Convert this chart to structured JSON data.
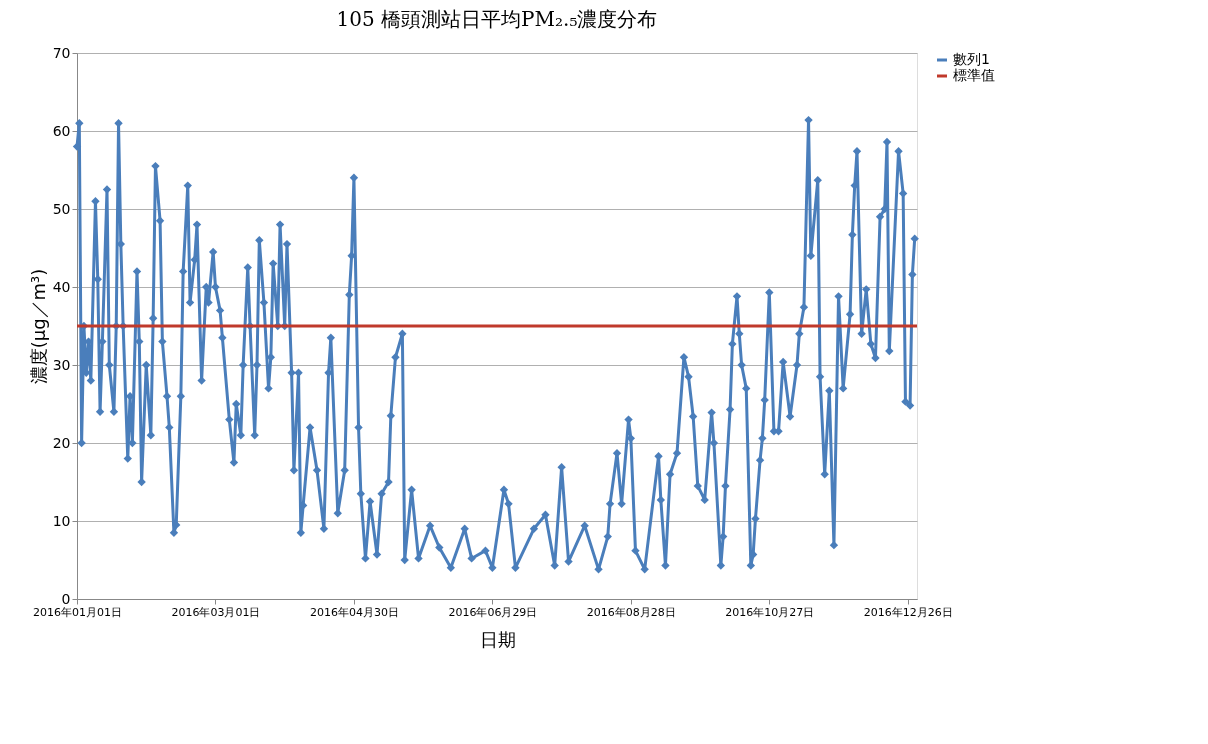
{
  "chart_data": {
    "type": "line",
    "title": "105 橋頭測站日平均PM₂.₅濃度分布",
    "xlabel": "日期",
    "ylabel": "濃度(μg／m³)",
    "x": [
      "2016-01-01",
      "2016-01-02",
      "2016-01-03",
      "2016-01-04",
      "2016-01-05",
      "2016-01-06",
      "2016-01-07",
      "2016-01-09",
      "2016-01-10",
      "2016-01-11",
      "2016-01-12",
      "2016-01-14",
      "2016-01-15",
      "2016-01-17",
      "2016-01-18",
      "2016-01-19",
      "2016-01-20",
      "2016-01-21",
      "2016-01-23",
      "2016-01-24",
      "2016-01-25",
      "2016-01-27",
      "2016-01-28",
      "2016-01-29",
      "2016-01-31",
      "2016-02-02",
      "2016-02-03",
      "2016-02-04",
      "2016-02-06",
      "2016-02-07",
      "2016-02-09",
      "2016-02-10",
      "2016-02-12",
      "2016-02-13",
      "2016-02-15",
      "2016-02-16",
      "2016-02-18",
      "2016-02-19",
      "2016-02-21",
      "2016-02-22",
      "2016-02-24",
      "2016-02-26",
      "2016-02-27",
      "2016-02-29",
      "2016-03-01",
      "2016-03-03",
      "2016-03-04",
      "2016-03-07",
      "2016-03-09",
      "2016-03-10",
      "2016-03-12",
      "2016-03-13",
      "2016-03-15",
      "2016-03-16",
      "2016-03-18",
      "2016-03-19",
      "2016-03-20",
      "2016-03-22",
      "2016-03-24",
      "2016-03-25",
      "2016-03-26",
      "2016-03-28",
      "2016-03-29",
      "2016-03-31",
      "2016-04-01",
      "2016-04-03",
      "2016-04-04",
      "2016-04-06",
      "2016-04-07",
      "2016-04-08",
      "2016-04-11",
      "2016-04-14",
      "2016-04-17",
      "2016-04-19",
      "2016-04-20",
      "2016-04-23",
      "2016-04-26",
      "2016-04-28",
      "2016-04-29",
      "2016-04-30",
      "2016-05-02",
      "2016-05-03",
      "2016-05-05",
      "2016-05-07",
      "2016-05-10",
      "2016-05-12",
      "2016-05-15",
      "2016-05-16",
      "2016-05-18",
      "2016-05-21",
      "2016-05-22",
      "2016-05-25",
      "2016-05-28",
      "2016-06-02",
      "2016-06-06",
      "2016-06-11",
      "2016-06-17",
      "2016-06-20",
      "2016-06-26",
      "2016-06-29",
      "2016-07-04",
      "2016-07-06",
      "2016-07-09",
      "2016-07-17",
      "2016-07-22",
      "2016-07-26",
      "2016-07-29",
      "2016-08-01",
      "2016-08-08",
      "2016-08-14",
      "2016-08-18",
      "2016-08-19",
      "2016-08-22",
      "2016-08-24",
      "2016-08-27",
      "2016-08-28",
      "2016-08-30",
      "2016-09-03",
      "2016-09-09",
      "2016-09-10",
      "2016-09-12",
      "2016-09-14",
      "2016-09-17",
      "2016-09-20",
      "2016-09-22",
      "2016-09-24",
      "2016-09-26",
      "2016-09-29",
      "2016-10-02",
      "2016-10-03",
      "2016-10-06",
      "2016-10-07",
      "2016-10-08",
      "2016-10-10",
      "2016-10-11",
      "2016-10-13",
      "2016-10-14",
      "2016-10-15",
      "2016-10-17",
      "2016-10-19",
      "2016-10-20",
      "2016-10-21",
      "2016-10-23",
      "2016-10-24",
      "2016-10-25",
      "2016-10-27",
      "2016-10-29",
      "2016-10-31",
      "2016-11-02",
      "2016-11-05",
      "2016-11-08",
      "2016-11-09",
      "2016-11-11",
      "2016-11-13",
      "2016-11-14",
      "2016-11-17",
      "2016-11-18",
      "2016-11-20",
      "2016-11-22",
      "2016-11-24",
      "2016-11-26",
      "2016-11-28",
      "2016-12-01",
      "2016-12-02",
      "2016-12-03",
      "2016-12-04",
      "2016-12-06",
      "2016-12-08",
      "2016-12-10",
      "2016-12-12",
      "2016-12-14",
      "2016-12-16",
      "2016-12-17",
      "2016-12-18",
      "2016-12-22",
      "2016-12-24",
      "2016-12-25",
      "2016-12-27",
      "2016-12-28",
      "2016-12-29"
    ],
    "series": [
      {
        "name": "數列1",
        "color": "#4a7ebb",
        "values": [
          58,
          61,
          20,
          35,
          29,
          33,
          28,
          51,
          41,
          24,
          33,
          52.5,
          30,
          24,
          35,
          61,
          45.5,
          35,
          18,
          26,
          20,
          42,
          33,
          15,
          30,
          21,
          36,
          55.5,
          48.5,
          33,
          26,
          22,
          8.5,
          9.5,
          26,
          42,
          53,
          38,
          43.5,
          48,
          28,
          40,
          38,
          44.5,
          40,
          37,
          33.5,
          23,
          17.5,
          25,
          21,
          30,
          42.5,
          35,
          21,
          30,
          46,
          38,
          27,
          31,
          43,
          35,
          48,
          35,
          45.5,
          29,
          16.5,
          29,
          8.5,
          12,
          22,
          16.5,
          9,
          29,
          33.5,
          11,
          16.5,
          39,
          44,
          54,
          22,
          13.5,
          5.2,
          12.5,
          5.7,
          13.5,
          15,
          23.5,
          31,
          34,
          5,
          14,
          5.2,
          9.4,
          6.6,
          4,
          9,
          5.2,
          6.2,
          4,
          14,
          12.2,
          4,
          9,
          10.8,
          4.3,
          16.9,
          4.8,
          9.4,
          3.8,
          8,
          12.2,
          18.7,
          12.2,
          23,
          20.6,
          6.2,
          3.8,
          18.3,
          12.7,
          4.3,
          16,
          18.7,
          31,
          28.5,
          23.4,
          14.5,
          12.7,
          23.9,
          20,
          4.3,
          8,
          14.5,
          24.3,
          32.7,
          38.8,
          34,
          30,
          27,
          4.3,
          5.7,
          10.3,
          17.8,
          20.6,
          25.5,
          39.3,
          21.5,
          21.5,
          30.4,
          23.4,
          30,
          34,
          37.4,
          61.4,
          44,
          53.7,
          28.5,
          16,
          26.7,
          6.9,
          38.8,
          27,
          36.5,
          46.7,
          53,
          57.4,
          34,
          39.7,
          32.7,
          30.9,
          49,
          50,
          58.6,
          31.8,
          57.4,
          52,
          25.3,
          24.8,
          41.6,
          46.2
        ]
      }
    ],
    "ref_lines": [
      {
        "axis": "y",
        "value": 35,
        "label": "標準值",
        "color": "#c0392b"
      }
    ],
    "xlim": [
      "2016-01-01",
      "2016-12-30"
    ],
    "xticks": [
      {
        "value": "2016-01-01",
        "label": "2016年01月01日"
      },
      {
        "value": "2016-03-01",
        "label": "2016年03月01日"
      },
      {
        "value": "2016-04-30",
        "label": "2016年04月30日"
      },
      {
        "value": "2016-06-29",
        "label": "2016年06月29日"
      },
      {
        "value": "2016-08-28",
        "label": "2016年08月28日"
      },
      {
        "value": "2016-10-27",
        "label": "2016年10月27日"
      },
      {
        "value": "2016-12-26",
        "label": "2016年12月26日"
      }
    ],
    "ylim": [
      0,
      70
    ],
    "yticks": [
      0,
      10,
      20,
      30,
      40,
      50,
      60,
      70
    ],
    "grid": "y",
    "legend": "right",
    "marker": "diamond",
    "line_style": "solid"
  }
}
